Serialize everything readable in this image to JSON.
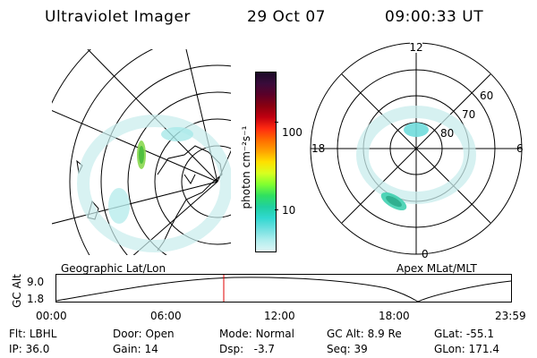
{
  "header": {
    "instrument": "Ultraviolet Imager",
    "date": "29 Oct 07",
    "time": "09:00:33 UT"
  },
  "colorbar": {
    "unit_label": "photon cm⁻²s⁻¹",
    "ticks": [
      "100",
      "10"
    ],
    "colors": [
      "#1a0a26",
      "#3a0b3a",
      "#5c0028",
      "#8a0010",
      "#c00010",
      "#ff2a10",
      "#ff6a00",
      "#ffa000",
      "#ffe000",
      "#d8ff20",
      "#80ff30",
      "#30e060",
      "#20d0a0",
      "#30d8d0",
      "#70e0e0",
      "#b0eeee",
      "#e0f6f6"
    ]
  },
  "left_panel": {
    "caption": "Geographic Lat/Lon"
  },
  "right_panel": {
    "caption": "Apex MLat/MLT",
    "mlt_labels": {
      "top": "12",
      "left": "18",
      "right": "6",
      "bottom": "0"
    },
    "lat_labels": [
      "60",
      "70",
      "80"
    ]
  },
  "timeline": {
    "y_axis_label": "GC Alt",
    "y_ticks": [
      "9.0",
      "1.8"
    ],
    "x_ticks": [
      "00:00",
      "06:00",
      "12:00",
      "18:00",
      "23:59"
    ],
    "current_marker_color": "#e00000"
  },
  "footer": {
    "row1": [
      {
        "label": "Flt:",
        "value": "LBHL"
      },
      {
        "label": "Door:",
        "value": "Open"
      },
      {
        "label": "Mode:",
        "value": "Normal"
      },
      {
        "label": "GC Alt:",
        "value": "8.9 Re"
      },
      {
        "label": "GLat:",
        "value": "-55.1"
      }
    ],
    "row2": [
      {
        "label": "IP:",
        "value": "36.0"
      },
      {
        "label": "Gain:",
        "value": "14"
      },
      {
        "label": "Dsp:",
        "value": "-3.7"
      },
      {
        "label": "Seq:",
        "value": "39"
      },
      {
        "label": "GLon:",
        "value": "171.4"
      }
    ]
  }
}
